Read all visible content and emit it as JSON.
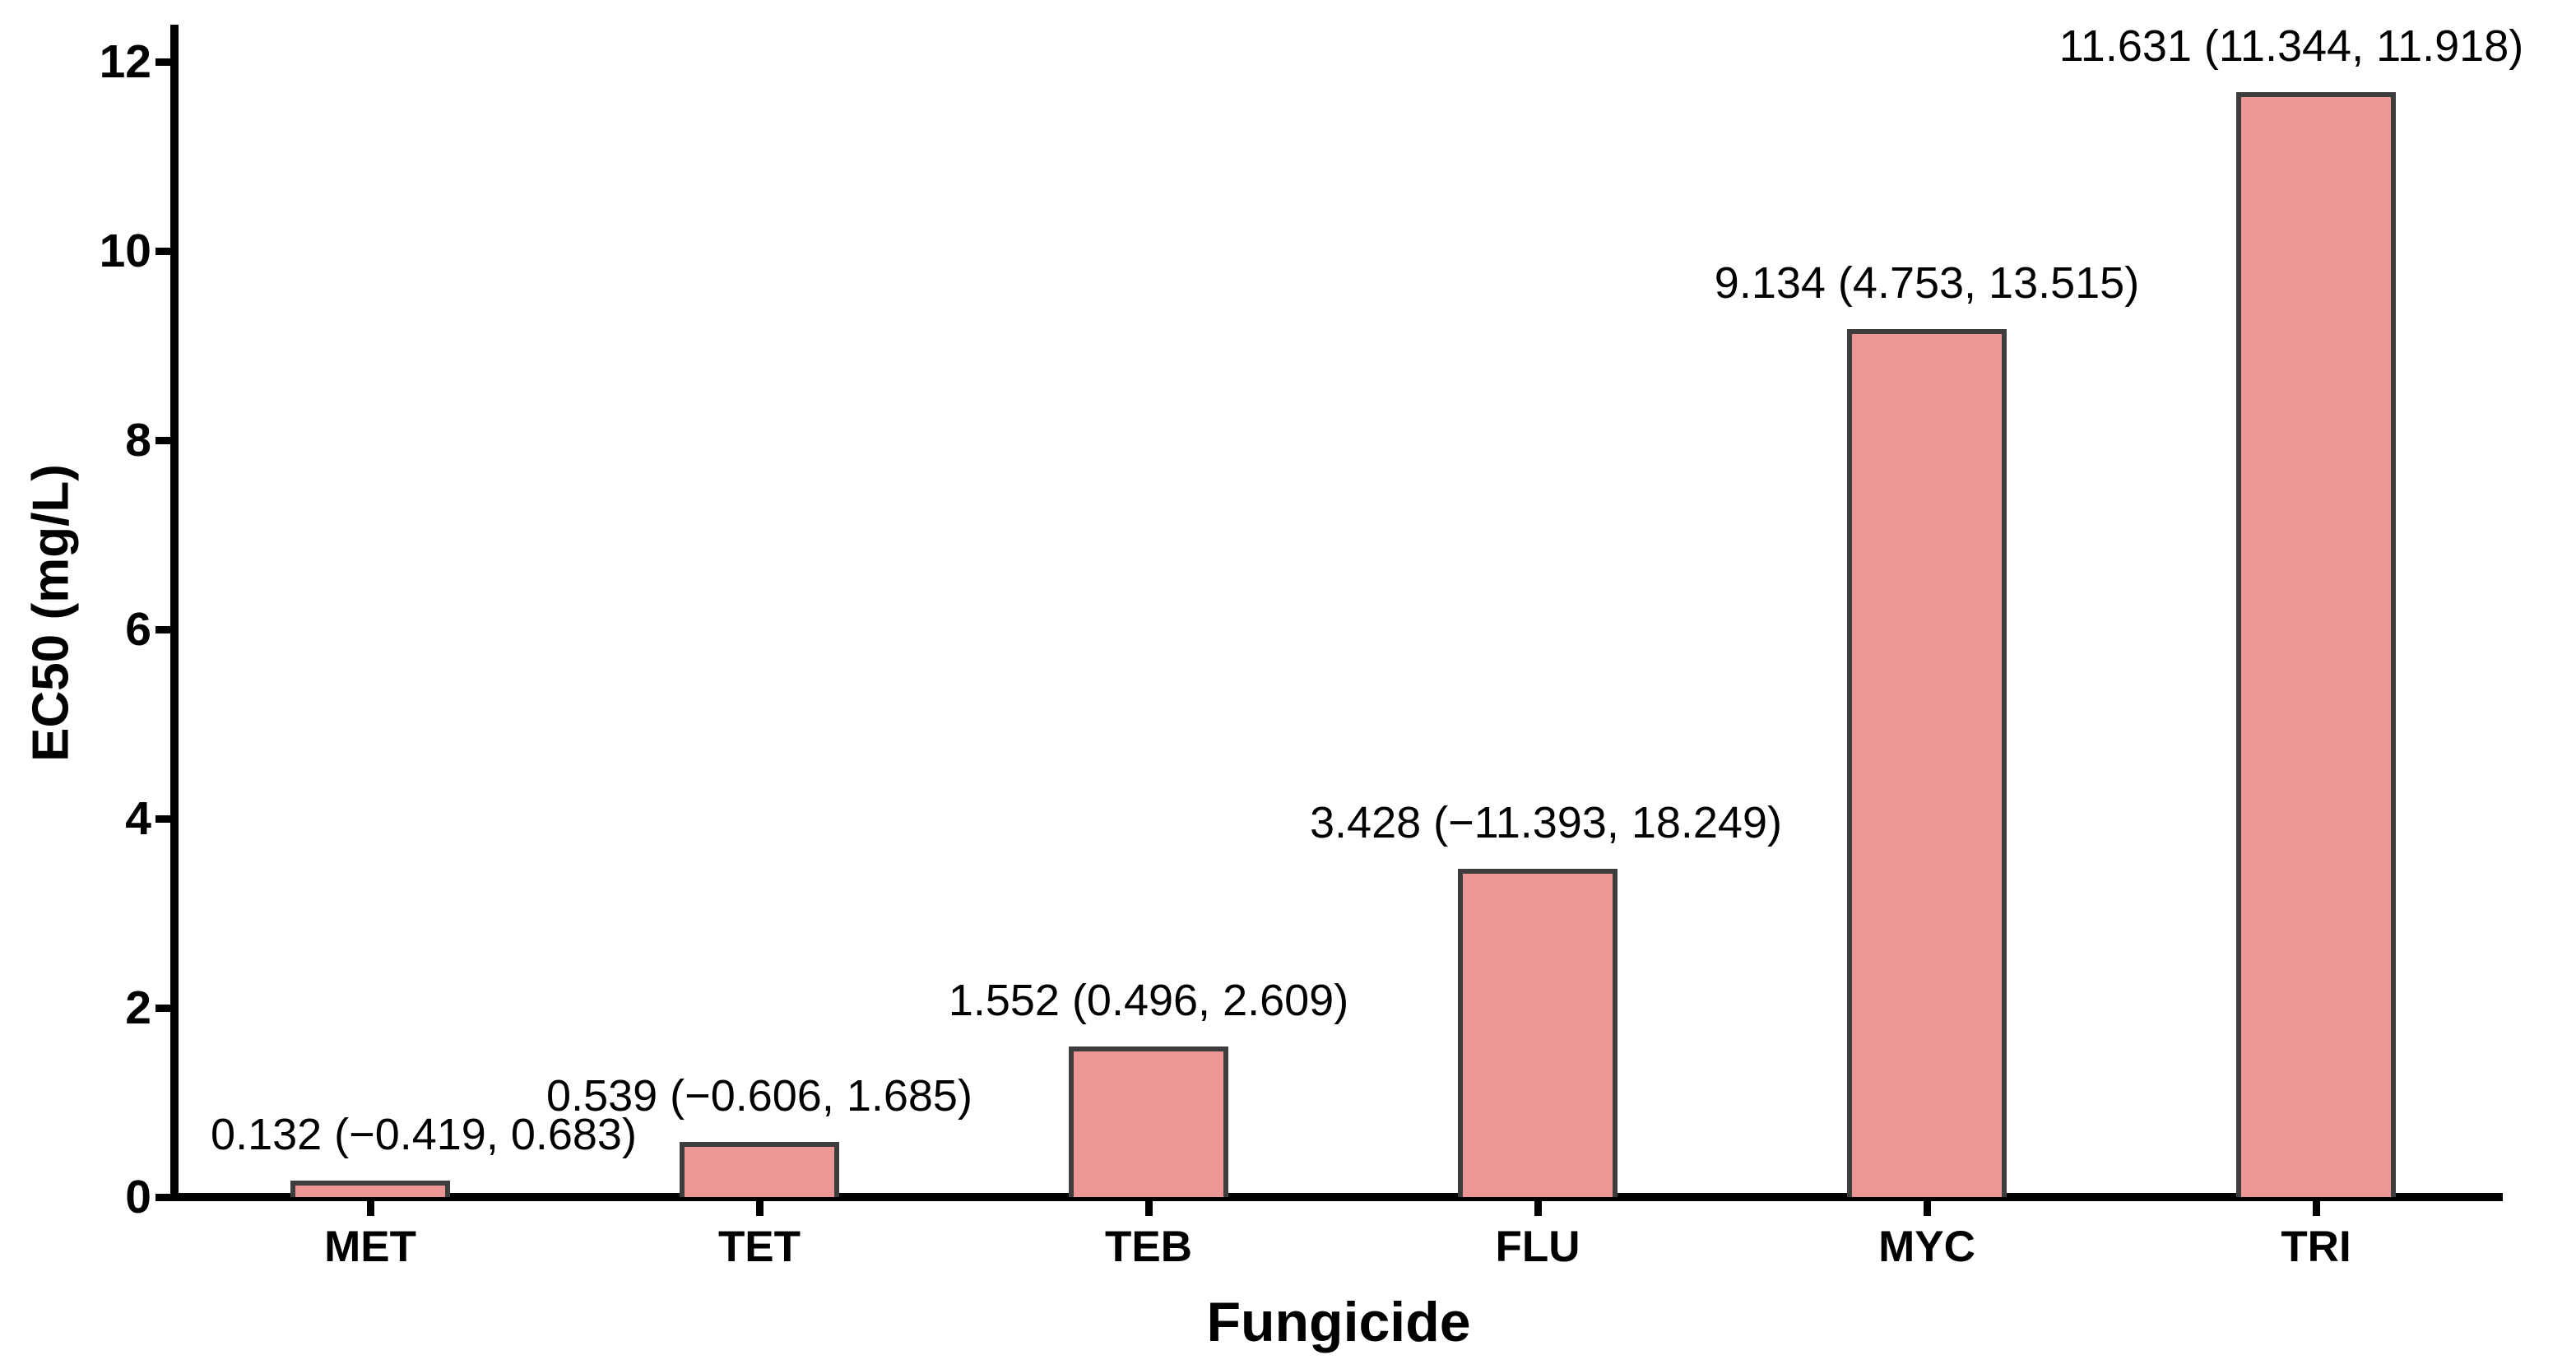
{
  "chart_data": {
    "type": "bar",
    "title": "",
    "xlabel": "Fungicide",
    "ylabel": "EC50 (mg/L)",
    "categories": [
      "MET",
      "TET",
      "TEB",
      "FLU",
      "MYC",
      "TRI"
    ],
    "values": [
      0.132,
      0.539,
      1.552,
      3.428,
      9.134,
      11.631
    ],
    "ci_low": [
      -0.419,
      -0.606,
      0.496,
      -11.393,
      4.753,
      11.344
    ],
    "ci_high": [
      0.683,
      1.685,
      2.609,
      18.249,
      13.515,
      11.918
    ],
    "bar_labels": [
      "0.132 (−0.419, 0.683)",
      "0.539 (−0.606, 1.685)",
      "1.552 (0.496, 2.609)",
      "3.428 (−11.393, 18.249)",
      "9.134 (4.753, 13.515)",
      "11.631 (11.344, 11.918)"
    ],
    "y_ticks": [
      0,
      2,
      4,
      6,
      8,
      10,
      12
    ],
    "y_tick_labels": [
      "0",
      "2",
      "4",
      "6",
      "8",
      "10",
      "12"
    ],
    "ylim": [
      0,
      12
    ],
    "grid": false,
    "legend": false,
    "bar_fill": "#EC9695",
    "bar_border": "#3D3D3D",
    "axis_color": "#000000",
    "label_dx": [
      65,
      0,
      0,
      10,
      0,
      -30
    ]
  }
}
